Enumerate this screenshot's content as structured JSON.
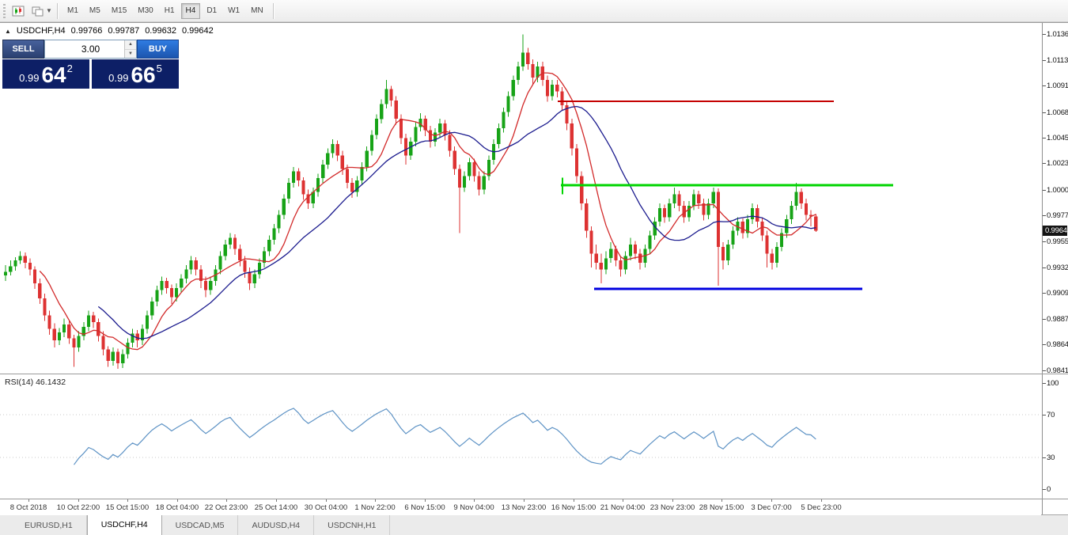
{
  "toolbar": {
    "timeframes": [
      {
        "label": "M1",
        "active": false
      },
      {
        "label": "M5",
        "active": false
      },
      {
        "label": "M15",
        "active": false
      },
      {
        "label": "M30",
        "active": false
      },
      {
        "label": "H1",
        "active": false
      },
      {
        "label": "H4",
        "active": true
      },
      {
        "label": "D1",
        "active": false
      },
      {
        "label": "W1",
        "active": false
      },
      {
        "label": "MN",
        "active": false
      }
    ]
  },
  "chart_header": {
    "collapse_arrow": "▲",
    "symbol_period": "USDCHF,H4",
    "open": "0.99766",
    "high": "0.99787",
    "low": "0.99632",
    "close": "0.99642"
  },
  "trade_panel": {
    "sell_label": "SELL",
    "buy_label": "BUY",
    "volume": "3.00",
    "sell_price": {
      "small": "0.99",
      "big": "64",
      "sup": "2"
    },
    "buy_price": {
      "small": "0.99",
      "big": "66",
      "sup": "5"
    }
  },
  "price_axis": {
    "ticks": [
      "1.01360",
      "1.01135",
      "1.00910",
      "1.00680",
      "1.00455",
      "1.00230",
      "1.00000",
      "0.99775",
      "0.99550",
      "0.99320",
      "0.99095",
      "0.98870",
      "0.98645",
      "0.98415"
    ],
    "current_price": "0.99642"
  },
  "rsi_panel": {
    "label": "RSI(14) 46.1432",
    "ticks": [
      "100",
      "70",
      "30",
      "0"
    ],
    "current": 46.1432
  },
  "time_axis": {
    "labels": [
      "8 Oct 2018",
      "10 Oct 22:00",
      "15 Oct 15:00",
      "18 Oct 04:00",
      "22 Oct 23:00",
      "25 Oct 14:00",
      "30 Oct 04:00",
      "1 Nov 22:00",
      "6 Nov 15:00",
      "9 Nov 04:00",
      "13 Nov 23:00",
      "16 Nov 15:00",
      "21 Nov 04:00",
      "23 Nov 23:00",
      "28 Nov 15:00",
      "3 Dec 07:00",
      "5 Dec 23:00"
    ]
  },
  "tabs": [
    {
      "label": "EURUSD,H1",
      "active": false
    },
    {
      "label": "USDCHF,H4",
      "active": true
    },
    {
      "label": "USDCAD,M5",
      "active": false
    },
    {
      "label": "AUDUSD,H4",
      "active": false
    },
    {
      "label": "USDCNH,H1",
      "active": false
    }
  ],
  "chart_data": {
    "type": "candlestick",
    "symbol": "USDCHF",
    "timeframe": "H4",
    "price_top": 1.0146,
    "price_bottom": 0.9839,
    "price_axis_values": [
      1.0136,
      1.01135,
      1.0091,
      1.0068,
      1.00455,
      1.0023,
      1.0,
      0.99775,
      0.9955,
      0.9932,
      0.99095,
      0.9887,
      0.98645,
      0.98415
    ],
    "rsi_axis_values": [
      100,
      70,
      30,
      0
    ],
    "last_price": 0.99642,
    "style": {
      "up_color": "#17a317",
      "down_color": "#dd3232",
      "rsi_color": "#5e93c5"
    },
    "ma_overlays": [
      {
        "period": 8,
        "color": "#d22a2a"
      },
      {
        "period": 20,
        "color": "#1b1b8e"
      }
    ],
    "hlines": [
      {
        "price": 1.00775,
        "x1": 0.536,
        "x2": 0.801,
        "color": "#c40000",
        "width": 2
      },
      {
        "price": 1.0004,
        "x1": 0.539,
        "x2": 0.858,
        "color": "#00d400",
        "width": 3
      },
      {
        "price": 0.9913,
        "x1": 0.571,
        "x2": 0.828,
        "color": "#0000e0",
        "width": 3
      }
    ],
    "vline_tick": {
      "x": 0.54,
      "p1": 1.00105,
      "p2": 0.9996,
      "color": "#00d400",
      "width": 2
    },
    "rsi": {
      "period": 14,
      "levels": [
        70,
        30
      ],
      "range": [
        0,
        100
      ]
    },
    "candles": [
      [
        0.9925,
        0.9934,
        0.992,
        0.9928
      ],
      [
        0.9928,
        0.9938,
        0.9925,
        0.9933
      ],
      [
        0.9933,
        0.9941,
        0.9929,
        0.9938
      ],
      [
        0.9938,
        0.9946,
        0.9935,
        0.9942
      ],
      [
        0.9942,
        0.9945,
        0.9931,
        0.9936
      ],
      [
        0.9936,
        0.994,
        0.9925,
        0.993
      ],
      [
        0.993,
        0.9933,
        0.9913,
        0.9918
      ],
      [
        0.9918,
        0.9922,
        0.99,
        0.9905
      ],
      [
        0.9905,
        0.9909,
        0.9885,
        0.989
      ],
      [
        0.989,
        0.9894,
        0.9873,
        0.9878
      ],
      [
        0.9878,
        0.9883,
        0.9862,
        0.9868
      ],
      [
        0.9868,
        0.9879,
        0.9864,
        0.9875
      ],
      [
        0.9875,
        0.9887,
        0.9871,
        0.9882
      ],
      [
        0.9882,
        0.9885,
        0.9865,
        0.987
      ],
      [
        0.987,
        0.9873,
        0.9845,
        0.9862
      ],
      [
        0.9862,
        0.9876,
        0.9858,
        0.9872
      ],
      [
        0.9872,
        0.9884,
        0.9868,
        0.988
      ],
      [
        0.988,
        0.9894,
        0.9876,
        0.989
      ],
      [
        0.989,
        0.9893,
        0.9879,
        0.9884
      ],
      [
        0.9884,
        0.9887,
        0.9867,
        0.9872
      ],
      [
        0.9872,
        0.9876,
        0.9855,
        0.986
      ],
      [
        0.986,
        0.9863,
        0.9845,
        0.985
      ],
      [
        0.985,
        0.9862,
        0.9846,
        0.9858
      ],
      [
        0.9858,
        0.9861,
        0.9843,
        0.9848
      ],
      [
        0.9848,
        0.986,
        0.9844,
        0.9856
      ],
      [
        0.9856,
        0.987,
        0.9852,
        0.9866
      ],
      [
        0.9866,
        0.9878,
        0.9862,
        0.9874
      ],
      [
        0.9874,
        0.9877,
        0.9862,
        0.9868
      ],
      [
        0.9868,
        0.9882,
        0.9864,
        0.9878
      ],
      [
        0.9878,
        0.9894,
        0.9874,
        0.989
      ],
      [
        0.989,
        0.9906,
        0.9886,
        0.9902
      ],
      [
        0.9902,
        0.9916,
        0.9898,
        0.9912
      ],
      [
        0.9912,
        0.9924,
        0.9908,
        0.992
      ],
      [
        0.992,
        0.9923,
        0.9909,
        0.9914
      ],
      [
        0.9914,
        0.9917,
        0.99,
        0.9906
      ],
      [
        0.9906,
        0.9918,
        0.9902,
        0.9914
      ],
      [
        0.9914,
        0.9926,
        0.991,
        0.9922
      ],
      [
        0.9922,
        0.9934,
        0.9918,
        0.993
      ],
      [
        0.993,
        0.9942,
        0.9926,
        0.9938
      ],
      [
        0.9938,
        0.9941,
        0.9925,
        0.993
      ],
      [
        0.993,
        0.9934,
        0.9914,
        0.992
      ],
      [
        0.992,
        0.9924,
        0.9906,
        0.9912
      ],
      [
        0.9912,
        0.9924,
        0.9908,
        0.992
      ],
      [
        0.992,
        0.9934,
        0.9916,
        0.993
      ],
      [
        0.993,
        0.9946,
        0.9926,
        0.9942
      ],
      [
        0.9942,
        0.9956,
        0.9938,
        0.9952
      ],
      [
        0.9952,
        0.9962,
        0.9948,
        0.9958
      ],
      [
        0.9958,
        0.9961,
        0.9943,
        0.9948
      ],
      [
        0.9948,
        0.9952,
        0.9933,
        0.9938
      ],
      [
        0.9938,
        0.9942,
        0.9923,
        0.9928
      ],
      [
        0.9928,
        0.9932,
        0.9912,
        0.9918
      ],
      [
        0.9918,
        0.993,
        0.9914,
        0.9926
      ],
      [
        0.9926,
        0.994,
        0.9922,
        0.9936
      ],
      [
        0.9936,
        0.995,
        0.9932,
        0.9946
      ],
      [
        0.9946,
        0.996,
        0.9942,
        0.9956
      ],
      [
        0.9956,
        0.997,
        0.9952,
        0.9966
      ],
      [
        0.9966,
        0.9982,
        0.9962,
        0.9978
      ],
      [
        0.9978,
        0.9996,
        0.9974,
        0.9992
      ],
      [
        0.9992,
        1.001,
        0.9988,
        1.0006
      ],
      [
        1.0006,
        1.002,
        1.0002,
        1.0016
      ],
      [
        1.0016,
        1.0019,
        1.0003,
        1.0008
      ],
      [
        1.0008,
        1.0011,
        0.9991,
        0.9996
      ],
      [
        0.9996,
        1.0,
        0.9983,
        0.9988
      ],
      [
        0.9988,
        1.0002,
        0.9984,
        0.9998
      ],
      [
        0.9998,
        1.0014,
        0.9994,
        1.001
      ],
      [
        1.001,
        1.0026,
        1.0006,
        1.0022
      ],
      [
        1.0022,
        1.0036,
        1.0018,
        1.0032
      ],
      [
        1.0032,
        1.0044,
        1.0028,
        1.004
      ],
      [
        1.004,
        1.0043,
        1.0025,
        1.003
      ],
      [
        1.003,
        1.0034,
        1.0013,
        1.0018
      ],
      [
        1.0018,
        1.0022,
        1.0001,
        1.0006
      ],
      [
        1.0006,
        1.001,
        0.9993,
        0.9998
      ],
      [
        0.9998,
        1.0012,
        0.9994,
        1.0008
      ],
      [
        1.0008,
        1.0024,
        1.0004,
        1.002
      ],
      [
        1.002,
        1.0038,
        1.0016,
        1.0034
      ],
      [
        1.0034,
        1.0052,
        1.003,
        1.0048
      ],
      [
        1.0048,
        1.0066,
        1.0044,
        1.0062
      ],
      [
        1.0062,
        1.0079,
        1.0058,
        1.0075
      ],
      [
        1.0075,
        1.0096,
        1.0071,
        1.0088
      ],
      [
        1.0088,
        1.0091,
        1.0073,
        1.0078
      ],
      [
        1.0078,
        1.0082,
        1.0057,
        1.0062
      ],
      [
        1.0062,
        1.0066,
        1.004,
        1.0045
      ],
      [
        1.0045,
        1.0049,
        1.0022,
        1.003
      ],
      [
        1.003,
        1.0046,
        1.0026,
        1.0042
      ],
      [
        1.0042,
        1.0059,
        1.0038,
        1.0055
      ],
      [
        1.0055,
        1.0067,
        1.0051,
        1.0062
      ],
      [
        1.0062,
        1.0065,
        1.0047,
        1.0052
      ],
      [
        1.0052,
        1.0056,
        1.0037,
        1.0042
      ],
      [
        1.0042,
        1.0054,
        1.0038,
        1.005
      ],
      [
        1.005,
        1.0062,
        1.0046,
        1.0058
      ],
      [
        1.0058,
        1.0061,
        1.0043,
        1.0048
      ],
      [
        1.0048,
        1.0052,
        1.0029,
        1.0034
      ],
      [
        1.0034,
        1.0038,
        1.0013,
        1.0018
      ],
      [
        1.0018,
        1.0022,
        0.9962,
        1.0002
      ],
      [
        1.0002,
        1.0016,
        0.9998,
        1.0012
      ],
      [
        1.0012,
        1.0028,
        1.0008,
        1.0024
      ],
      [
        1.0024,
        1.0027,
        1.0007,
        1.0012
      ],
      [
        1.0012,
        1.0016,
        0.9995,
        1.0
      ],
      [
        1.0,
        1.0016,
        0.9996,
        1.0012
      ],
      [
        1.0012,
        1.003,
        1.0008,
        1.0026
      ],
      [
        1.0026,
        1.0044,
        1.0022,
        1.004
      ],
      [
        1.004,
        1.0058,
        1.0036,
        1.0054
      ],
      [
        1.0054,
        1.0072,
        1.005,
        1.0068
      ],
      [
        1.0068,
        1.0086,
        1.0064,
        1.0082
      ],
      [
        1.0082,
        1.01,
        1.0078,
        1.0096
      ],
      [
        1.0096,
        1.0112,
        1.0092,
        1.0108
      ],
      [
        1.0108,
        1.0136,
        1.0104,
        1.012
      ],
      [
        1.012,
        1.0124,
        1.0105,
        1.011
      ],
      [
        1.011,
        1.0114,
        1.0092,
        1.0098
      ],
      [
        1.0098,
        1.0112,
        1.0094,
        1.0108
      ],
      [
        1.0108,
        1.0112,
        1.0091,
        1.0096
      ],
      [
        1.0096,
        1.01,
        1.0077,
        1.0082
      ],
      [
        1.0082,
        1.0096,
        1.0078,
        1.0092
      ],
      [
        1.0092,
        1.0096,
        1.0081,
        1.0086
      ],
      [
        1.0086,
        1.009,
        1.0069,
        1.0074
      ],
      [
        1.0074,
        1.0078,
        1.0052,
        1.0058
      ],
      [
        1.0058,
        1.0062,
        1.003,
        1.0036
      ],
      [
        1.0036,
        1.004,
        1.0006,
        1.0012
      ],
      [
        1.0012,
        1.0016,
        0.9982,
        0.9988
      ],
      [
        0.9988,
        0.9992,
        0.9958,
        0.9964
      ],
      [
        0.9964,
        0.9968,
        0.9932,
        0.9944
      ],
      [
        0.9944,
        0.9952,
        0.993,
        0.9936
      ],
      [
        0.9936,
        0.9944,
        0.9918,
        0.993
      ],
      [
        0.993,
        0.9946,
        0.9926,
        0.994
      ],
      [
        0.994,
        0.9954,
        0.9936,
        0.9948
      ],
      [
        0.9948,
        0.9951,
        0.9933,
        0.9938
      ],
      [
        0.9938,
        0.9942,
        0.9924,
        0.993
      ],
      [
        0.993,
        0.9946,
        0.9926,
        0.9942
      ],
      [
        0.9942,
        0.9958,
        0.9938,
        0.9952
      ],
      [
        0.9952,
        0.9955,
        0.9939,
        0.9944
      ],
      [
        0.9944,
        0.9948,
        0.993,
        0.9936
      ],
      [
        0.9936,
        0.9952,
        0.9932,
        0.9948
      ],
      [
        0.9948,
        0.9964,
        0.9944,
        0.996
      ],
      [
        0.996,
        0.9976,
        0.9956,
        0.9972
      ],
      [
        0.9972,
        0.9988,
        0.9968,
        0.9984
      ],
      [
        0.9984,
        0.9987,
        0.9971,
        0.9976
      ],
      [
        0.9976,
        0.9992,
        0.9972,
        0.9988
      ],
      [
        0.9988,
        1.0002,
        0.9984,
        0.9996
      ],
      [
        0.9996,
        0.9999,
        0.9981,
        0.9986
      ],
      [
        0.9986,
        0.999,
        0.9971,
        0.9976
      ],
      [
        0.9976,
        0.999,
        0.9972,
        0.9986
      ],
      [
        0.9986,
        1.0,
        0.9982,
        0.9996
      ],
      [
        0.9996,
        0.9999,
        0.9983,
        0.9988
      ],
      [
        0.9988,
        0.9992,
        0.9973,
        0.9978
      ],
      [
        0.9978,
        0.9992,
        0.9974,
        0.9988
      ],
      [
        0.9988,
        1.0002,
        0.9984,
        0.9998
      ],
      [
        0.9998,
        1.0001,
        0.9916,
        0.995
      ],
      [
        0.995,
        0.9954,
        0.993,
        0.9938
      ],
      [
        0.9938,
        0.9956,
        0.9934,
        0.9952
      ],
      [
        0.9952,
        0.9968,
        0.9948,
        0.9964
      ],
      [
        0.9964,
        0.9976,
        0.996,
        0.9972
      ],
      [
        0.9972,
        0.9975,
        0.9957,
        0.9962
      ],
      [
        0.9962,
        0.9978,
        0.9958,
        0.9974
      ],
      [
        0.9974,
        0.9988,
        0.997,
        0.9984
      ],
      [
        0.9984,
        0.9987,
        0.9967,
        0.9972
      ],
      [
        0.9972,
        0.9976,
        0.9955,
        0.996
      ],
      [
        0.996,
        0.9964,
        0.9932,
        0.9944
      ],
      [
        0.9944,
        0.9948,
        0.993,
        0.9936
      ],
      [
        0.9936,
        0.9954,
        0.9932,
        0.995
      ],
      [
        0.995,
        0.9966,
        0.9946,
        0.9962
      ],
      [
        0.9962,
        0.9978,
        0.9958,
        0.9974
      ],
      [
        0.9974,
        0.999,
        0.997,
        0.9986
      ],
      [
        0.9986,
        1.0006,
        0.9982,
        0.9998
      ],
      [
        0.9998,
        1.0001,
        0.9983,
        0.9988
      ],
      [
        0.9988,
        0.9992,
        0.9973,
        0.9978
      ],
      [
        0.9978,
        0.9982,
        0.9968,
        0.99766
      ],
      [
        0.99766,
        0.99787,
        0.99632,
        0.99642
      ]
    ]
  }
}
